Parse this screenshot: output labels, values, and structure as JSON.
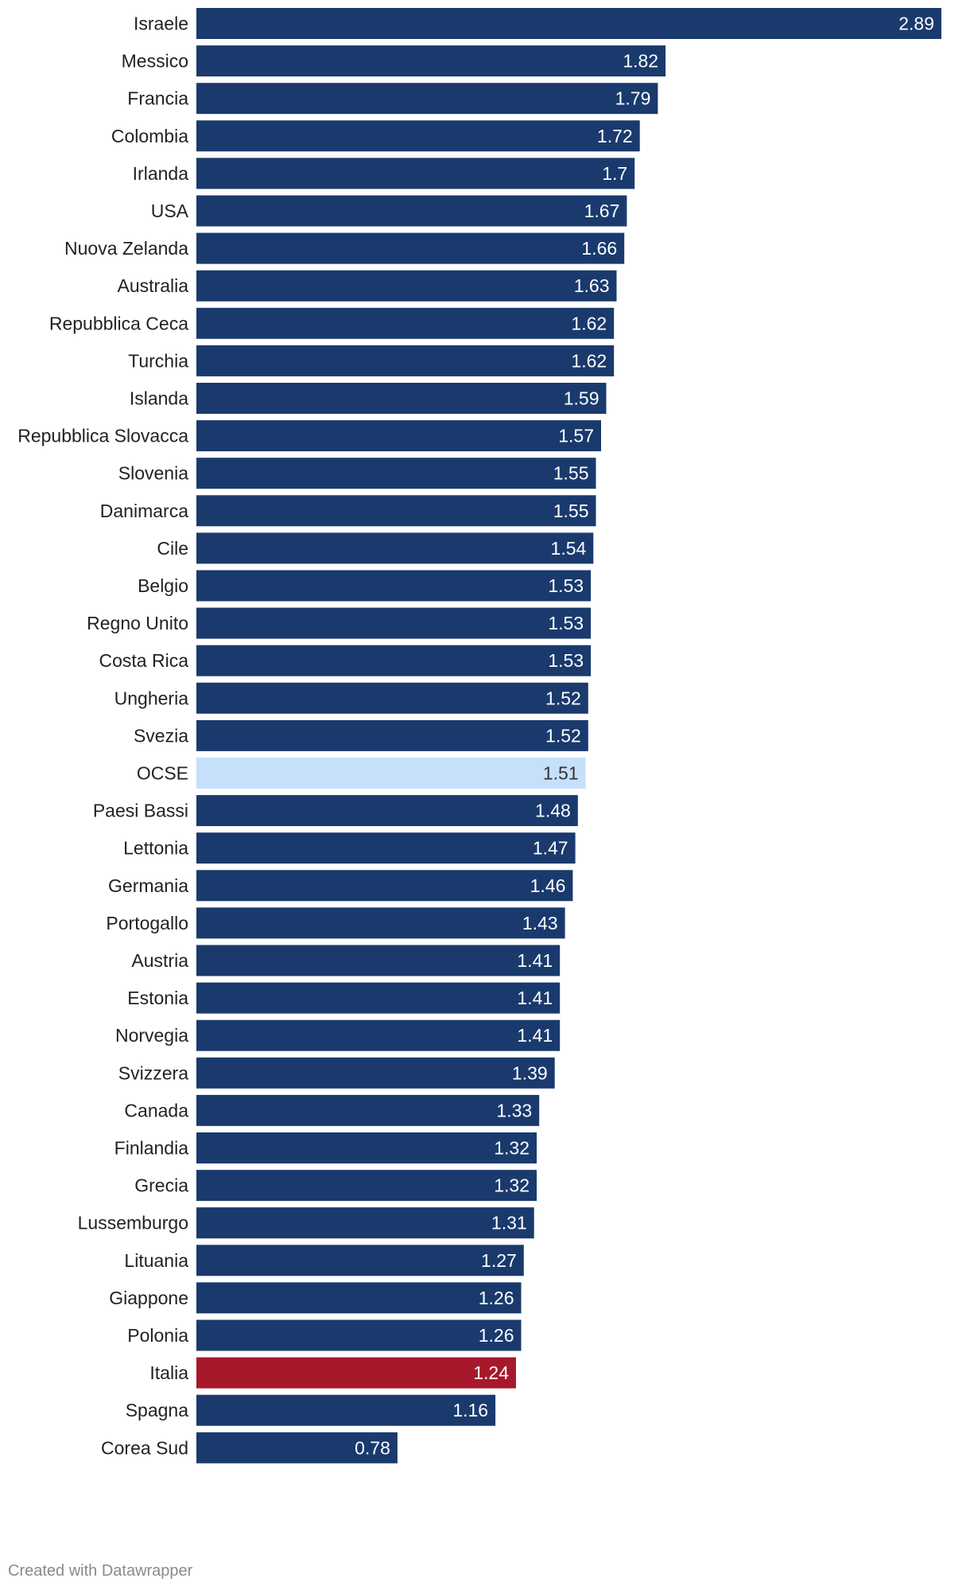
{
  "chart_data": {
    "type": "bar",
    "orientation": "horizontal",
    "title": "",
    "xlabel": "",
    "ylabel": "",
    "xlim": [
      0,
      2.89
    ],
    "grid": false,
    "legend": "none",
    "categories": [
      "Israele",
      "Messico",
      "Francia",
      "Colombia",
      "Irlanda",
      "USA",
      "Nuova Zelanda",
      "Australia",
      "Repubblica Ceca",
      "Turchia",
      "Islanda",
      "Repubblica Slovacca",
      "Slovenia",
      "Danimarca",
      "Cile",
      "Belgio",
      "Regno Unito",
      "Costa Rica",
      "Ungheria",
      "Svezia",
      "OCSE",
      "Paesi Bassi",
      "Lettonia",
      "Germania",
      "Portogallo",
      "Austria",
      "Estonia",
      "Norvegia",
      "Svizzera",
      "Canada",
      "Finlandia",
      "Grecia",
      "Lussemburgo",
      "Lituania",
      "Giappone",
      "Polonia",
      "Italia",
      "Spagna",
      "Corea Sud"
    ],
    "values": [
      2.89,
      1.82,
      1.79,
      1.72,
      1.7,
      1.67,
      1.66,
      1.63,
      1.62,
      1.62,
      1.59,
      1.57,
      1.55,
      1.55,
      1.54,
      1.53,
      1.53,
      1.53,
      1.52,
      1.52,
      1.51,
      1.48,
      1.47,
      1.46,
      1.43,
      1.41,
      1.41,
      1.41,
      1.39,
      1.33,
      1.32,
      1.32,
      1.31,
      1.27,
      1.26,
      1.26,
      1.24,
      1.16,
      0.78
    ],
    "value_labels": [
      "2.89",
      "1.82",
      "1.79",
      "1.72",
      "1.7",
      "1.67",
      "1.66",
      "1.63",
      "1.62",
      "1.62",
      "1.59",
      "1.57",
      "1.55",
      "1.55",
      "1.54",
      "1.53",
      "1.53",
      "1.53",
      "1.52",
      "1.52",
      "1.51",
      "1.48",
      "1.47",
      "1.46",
      "1.43",
      "1.41",
      "1.41",
      "1.41",
      "1.39",
      "1.33",
      "1.32",
      "1.32",
      "1.31",
      "1.27",
      "1.26",
      "1.26",
      "1.24",
      "1.16",
      "0.78"
    ],
    "highlights": {
      "OCSE": "#c6dffb",
      "Italia": "#a8182b"
    }
  },
  "colors": {
    "default_bar": "#1a3a6e",
    "label_on_dark": "#ffffff",
    "label_on_light": "#333333",
    "category_text": "#222222"
  },
  "footer": {
    "credit": "Created with Datawrapper"
  }
}
